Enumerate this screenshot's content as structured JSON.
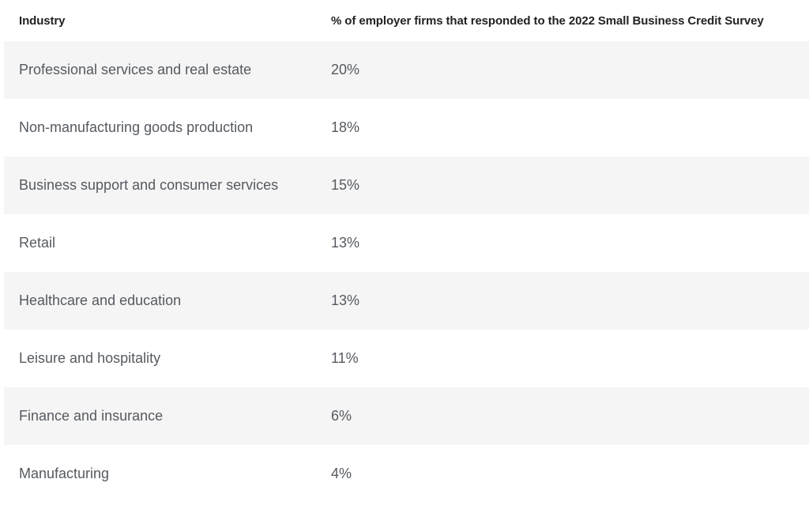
{
  "table": {
    "headers": [
      "Industry",
      "% of employer firms that responded to the 2022 Small Business Credit Survey"
    ],
    "rows": [
      {
        "industry": "Professional services and real estate",
        "percent": "20%"
      },
      {
        "industry": "Non-manufacturing goods production",
        "percent": "18%"
      },
      {
        "industry": "Business support and consumer services",
        "percent": "15%"
      },
      {
        "industry": "Retail",
        "percent": "13%"
      },
      {
        "industry": "Healthcare and education",
        "percent": "13%"
      },
      {
        "industry": "Leisure and hospitality",
        "percent": "11%"
      },
      {
        "industry": "Finance and insurance",
        "percent": "6%"
      },
      {
        "industry": "Manufacturing",
        "percent": "4%"
      }
    ]
  },
  "colors": {
    "background": "#ffffff",
    "stripe": "#f5f5f5",
    "header_text": "#222222",
    "body_text": "#555a60"
  }
}
